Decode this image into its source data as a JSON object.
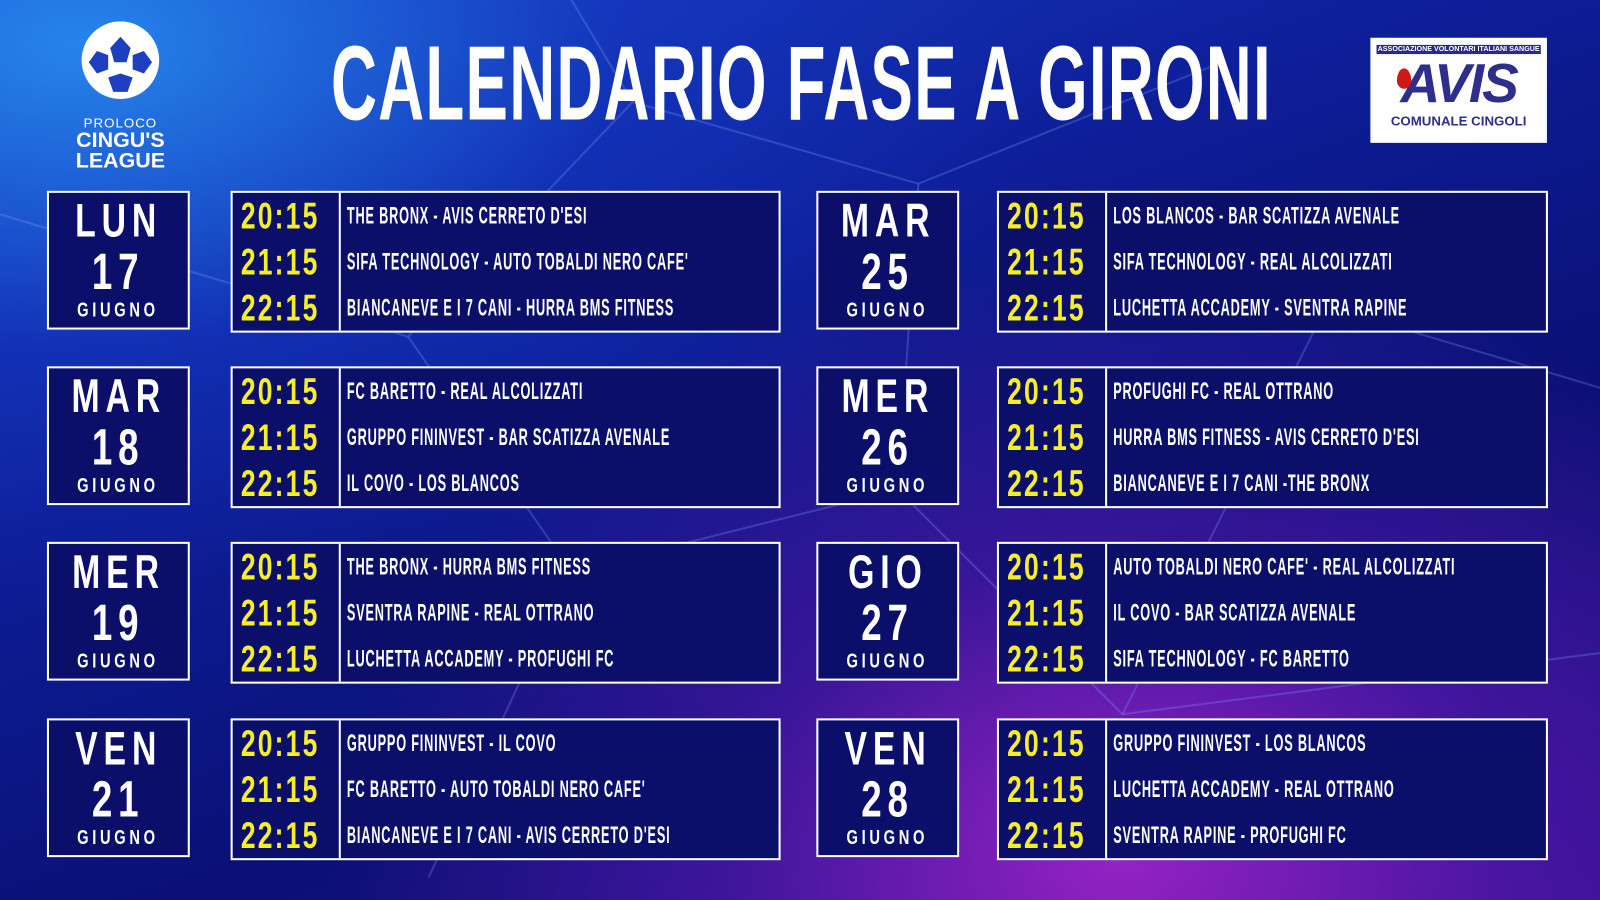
{
  "title": "CALENDARIO FASE A GIRONI",
  "logo_left": {
    "proloco": "PROLOCO",
    "line1": "CINGU'S",
    "line2": "LEAGUE",
    "icon": "starball-icon"
  },
  "logo_right": {
    "assoc": "ASSOCIAZIONE VOLONTARI ITALIANI SANGUE",
    "name": "AVIS",
    "sub": "COMUNALE CINGOLI"
  },
  "colors": {
    "time": "#f4ef2a",
    "box": "#0b0f6a",
    "text": "#ffffff"
  },
  "days": [
    {
      "day": "LUN",
      "num": "17",
      "month": "GIUGNO",
      "matches": [
        {
          "time": "20:15",
          "match": "THE BRONX - AVIS CERRETO D'ESI"
        },
        {
          "time": "21:15",
          "match": "SIFA TECHNOLOGY - AUTO TOBALDI NERO CAFE'"
        },
        {
          "time": "22:15",
          "match": "BIANCANEVE E I 7 CANI - HURRA BMS FITNESS"
        }
      ]
    },
    {
      "day": "MAR",
      "num": "18",
      "month": "GIUGNO",
      "matches": [
        {
          "time": "20:15",
          "match": "FC BARETTO - REAL ALCOLIZZATI"
        },
        {
          "time": "21:15",
          "match": "GRUPPO FININVEST - BAR SCATIZZA AVENALE"
        },
        {
          "time": "22:15",
          "match": "IL COVO - LOS BLANCOS"
        }
      ]
    },
    {
      "day": "MER",
      "num": "19",
      "month": "GIUGNO",
      "matches": [
        {
          "time": "20:15",
          "match": "THE BRONX - HURRA BMS FITNESS"
        },
        {
          "time": "21:15",
          "match": "SVENTRA RAPINE - REAL OTTRANO"
        },
        {
          "time": "22:15",
          "match": "LUCHETTA ACCADEMY - PROFUGHI FC"
        }
      ]
    },
    {
      "day": "VEN",
      "num": "21",
      "month": "GIUGNO",
      "matches": [
        {
          "time": "20:15",
          "match": "GRUPPO FININVEST - IL COVO"
        },
        {
          "time": "21:15",
          "match": "FC BARETTO - AUTO TOBALDI NERO CAFE'"
        },
        {
          "time": "22:15",
          "match": "BIANCANEVE E I 7 CANI - AVIS CERRETO D'ESI"
        }
      ]
    },
    {
      "day": "MAR",
      "num": "25",
      "month": "GIUGNO",
      "matches": [
        {
          "time": "20:15",
          "match": "LOS BLANCOS - BAR SCATIZZA AVENALE"
        },
        {
          "time": "21:15",
          "match": "SIFA TECHNOLOGY - REAL ALCOLIZZATI"
        },
        {
          "time": "22:15",
          "match": "LUCHETTA ACCADEMY - SVENTRA RAPINE"
        }
      ]
    },
    {
      "day": "MER",
      "num": "26",
      "month": "GIUGNO",
      "matches": [
        {
          "time": "20:15",
          "match": "PROFUGHI FC - REAL OTTRANO"
        },
        {
          "time": "21:15",
          "match": "HURRA BMS FITNESS - AVIS CERRETO D'ESI"
        },
        {
          "time": "22:15",
          "match": "BIANCANEVE E I 7 CANI -THE BRONX"
        }
      ]
    },
    {
      "day": "GIO",
      "num": "27",
      "month": "GIUGNO",
      "matches": [
        {
          "time": "20:15",
          "match": "AUTO TOBALDI NERO CAFE' - REAL ALCOLIZZATI"
        },
        {
          "time": "21:15",
          "match": "IL COVO - BAR SCATIZZA AVENALE"
        },
        {
          "time": "22:15",
          "match": "SIFA TECHNOLOGY - FC BARETTO"
        }
      ]
    },
    {
      "day": "VEN",
      "num": "28",
      "month": "GIUGNO",
      "matches": [
        {
          "time": "20:15",
          "match": "GRUPPO FININVEST - LOS BLANCOS"
        },
        {
          "time": "21:15",
          "match": "LUCHETTA ACCADEMY - REAL OTTRANO"
        },
        {
          "time": "22:15",
          "match": "SVENTRA RAPINE - PROFUGHI FC"
        }
      ]
    }
  ]
}
